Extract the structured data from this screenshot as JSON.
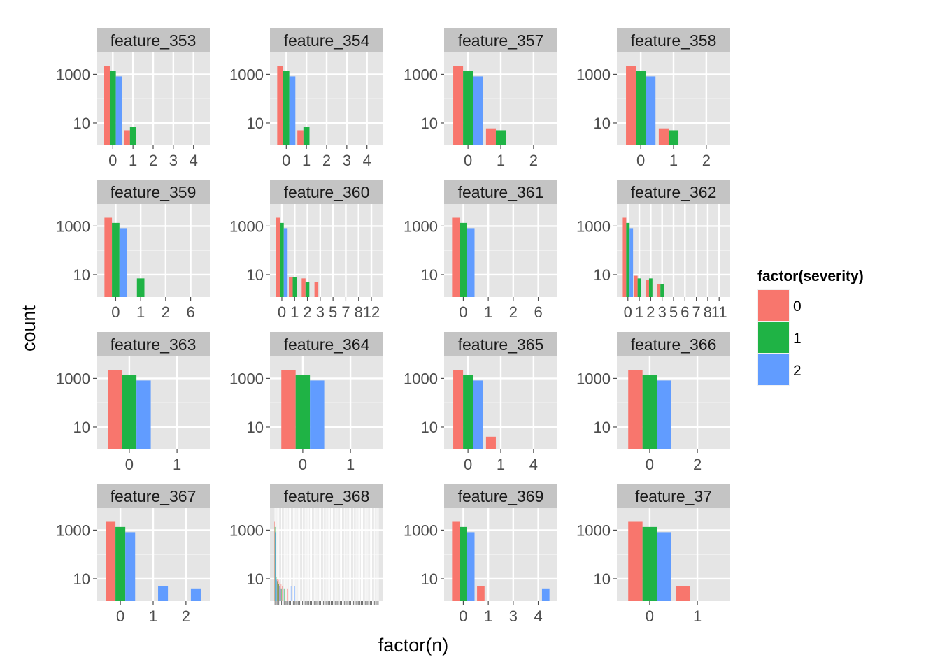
{
  "chart_data": {
    "type": "bar",
    "facet_layout": "4x4 grid",
    "xlabel": "factor(n)",
    "ylabel": "count",
    "y_scale": "log10",
    "ylim": [
      1.2,
      8000
    ],
    "y_ticks": [
      {
        "value": 10,
        "label": "10"
      },
      {
        "value": 1000,
        "label": "1000"
      }
    ],
    "grid": true,
    "legend": {
      "title": "factor(severity)",
      "position": "right",
      "entries": [
        {
          "label": "0",
          "color": "#F8766D"
        },
        {
          "label": "1",
          "color": "#1FB345"
        },
        {
          "label": "2",
          "color": "#619CFF"
        }
      ]
    },
    "series_colors": [
      "#F8766D",
      "#1FB345",
      "#619CFF"
    ],
    "panels": [
      {
        "title": "feature_353",
        "categories": [
          "0",
          "1",
          "2",
          "3",
          "4"
        ],
        "values": [
          [
            2200,
            1350,
            820
          ],
          [
            5,
            7,
            0
          ],
          [
            0,
            0,
            0
          ],
          [
            0,
            0,
            0
          ],
          [
            0,
            0,
            0
          ]
        ]
      },
      {
        "title": "feature_354",
        "categories": [
          "0",
          "1",
          "2",
          "3",
          "4"
        ],
        "values": [
          [
            2200,
            1350,
            820
          ],
          [
            5,
            7,
            0
          ],
          [
            0,
            0,
            0
          ],
          [
            0,
            0,
            0
          ],
          [
            0,
            0,
            0
          ]
        ]
      },
      {
        "title": "feature_357",
        "categories": [
          "0",
          "1",
          "2"
        ],
        "values": [
          [
            2200,
            1350,
            820
          ],
          [
            6,
            5,
            0
          ],
          [
            0,
            0,
            0
          ]
        ]
      },
      {
        "title": "feature_358",
        "categories": [
          "0",
          "1",
          "2"
        ],
        "values": [
          [
            2200,
            1350,
            820
          ],
          [
            6,
            5,
            0
          ],
          [
            0,
            0,
            0
          ]
        ]
      },
      {
        "title": "feature_359",
        "categories": [
          "0",
          "1",
          "2",
          "6"
        ],
        "values": [
          [
            2200,
            1350,
            820
          ],
          [
            0,
            7,
            0
          ],
          [
            0,
            0,
            0
          ],
          [
            0,
            0,
            0
          ]
        ]
      },
      {
        "title": "feature_360",
        "categories": [
          "0",
          "1",
          "2",
          "3",
          "5",
          "7",
          "8",
          "12"
        ],
        "values": [
          [
            2200,
            1350,
            820
          ],
          [
            8,
            8,
            0
          ],
          [
            7,
            5,
            0
          ],
          [
            5,
            0,
            0
          ],
          [
            0,
            0,
            0
          ],
          [
            0,
            0,
            0
          ],
          [
            0,
            0,
            0
          ],
          [
            0,
            0,
            0
          ]
        ]
      },
      {
        "title": "feature_361",
        "categories": [
          "0",
          "1",
          "2",
          "6"
        ],
        "values": [
          [
            2200,
            1350,
            820
          ],
          [
            0,
            0,
            0
          ],
          [
            0,
            0,
            0
          ],
          [
            0,
            0,
            0
          ]
        ]
      },
      {
        "title": "feature_362",
        "categories": [
          "0",
          "1",
          "2",
          "3",
          "5",
          "6",
          "7",
          "8",
          "11"
        ],
        "values": [
          [
            2200,
            1350,
            820
          ],
          [
            9,
            7,
            0
          ],
          [
            6,
            7,
            0
          ],
          [
            4,
            4,
            0
          ],
          [
            0,
            0,
            0
          ],
          [
            0,
            0,
            0
          ],
          [
            0,
            0,
            0
          ],
          [
            0,
            0,
            0
          ],
          [
            0,
            0,
            0
          ]
        ]
      },
      {
        "title": "feature_363",
        "categories": [
          "0",
          "1"
        ],
        "values": [
          [
            2200,
            1350,
            820
          ],
          [
            0,
            0,
            0
          ]
        ]
      },
      {
        "title": "feature_364",
        "categories": [
          "0",
          "1"
        ],
        "values": [
          [
            2200,
            1350,
            820
          ],
          [
            0,
            0,
            0
          ]
        ]
      },
      {
        "title": "feature_365",
        "categories": [
          "0",
          "1",
          "4"
        ],
        "values": [
          [
            2200,
            1350,
            820
          ],
          [
            4,
            0,
            0
          ],
          [
            0,
            0,
            0
          ]
        ]
      },
      {
        "title": "feature_366",
        "categories": [
          "0",
          "2"
        ],
        "values": [
          [
            2200,
            1350,
            820
          ],
          [
            0,
            0,
            0
          ]
        ]
      },
      {
        "title": "feature_367",
        "categories": [
          "0",
          "1",
          "2"
        ],
        "values": [
          [
            2200,
            1350,
            820
          ],
          [
            0,
            0,
            5
          ],
          [
            0,
            0,
            4
          ]
        ]
      },
      {
        "title": "feature_368",
        "categories": [],
        "dense": true,
        "dense_bins": 80,
        "values": [
          [
            2200,
            1350,
            820
          ],
          [
            14,
            12,
            9
          ],
          [
            10,
            8,
            7
          ],
          [
            9,
            6,
            5
          ],
          [
            7,
            5,
            4
          ],
          [
            6,
            4,
            0
          ],
          [
            5,
            0,
            4
          ],
          [
            0,
            4,
            0
          ],
          [
            5,
            0,
            0
          ],
          [
            0,
            0,
            5
          ],
          [
            4,
            0,
            0
          ],
          [
            0,
            0,
            4
          ],
          [
            0,
            0,
            5
          ],
          [
            0,
            4,
            0
          ],
          [
            0,
            0,
            0
          ],
          [
            0,
            0,
            5
          ]
        ]
      },
      {
        "title": "feature_369",
        "categories": [
          "0",
          "1",
          "3",
          "4"
        ],
        "values": [
          [
            2200,
            1350,
            820
          ],
          [
            5,
            0,
            0
          ],
          [
            0,
            0,
            0
          ],
          [
            0,
            0,
            4
          ]
        ]
      },
      {
        "title": "feature_37",
        "categories": [
          "0",
          "1"
        ],
        "values": [
          [
            2200,
            1350,
            820
          ],
          [
            5,
            0,
            0
          ]
        ]
      }
    ]
  }
}
